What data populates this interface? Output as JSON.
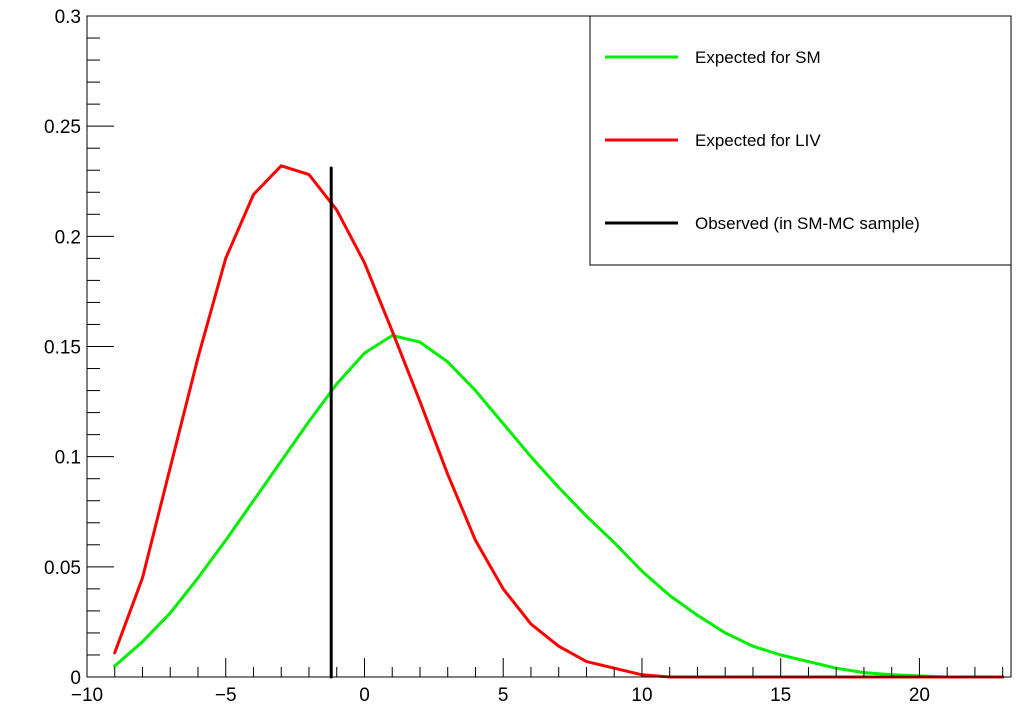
{
  "chart_data": {
    "type": "line",
    "title": "",
    "xlabel": "",
    "ylabel": "",
    "xlim": [
      -10,
      23.3
    ],
    "ylim": [
      0,
      0.3
    ],
    "x_major_ticks": [
      -10,
      -5,
      0,
      5,
      10,
      15,
      20
    ],
    "x_tick_labels": [
      "−10",
      "−5",
      "0",
      "5",
      "10",
      "15",
      "20"
    ],
    "y_major_ticks": [
      0,
      0.05,
      0.1,
      0.15,
      0.2,
      0.25,
      0.3
    ],
    "y_tick_labels": [
      "0",
      "0.05",
      "0.1",
      "0.15",
      "0.2",
      "0.25",
      "0.3"
    ],
    "grid": false,
    "legend_position": "top-right",
    "series": [
      {
        "name": "Expected for SM",
        "color": "#00ee00",
        "x": [
          -9,
          -8,
          -7,
          -6,
          -5,
          -4,
          -3,
          -2,
          -1,
          0,
          1,
          2,
          3,
          4,
          5,
          6,
          7,
          8,
          9,
          10,
          11,
          12,
          13,
          14,
          15,
          16,
          17,
          18,
          19,
          20,
          21,
          22,
          23
        ],
        "y": [
          0.005,
          0.016,
          0.029,
          0.045,
          0.062,
          0.08,
          0.098,
          0.116,
          0.133,
          0.147,
          0.155,
          0.152,
          0.143,
          0.13,
          0.115,
          0.1,
          0.086,
          0.073,
          0.061,
          0.048,
          0.037,
          0.028,
          0.02,
          0.014,
          0.01,
          0.007,
          0.004,
          0.002,
          0.001,
          0.0005,
          0,
          0,
          0
        ]
      },
      {
        "name": "Expected for LIV",
        "color": "#ff0000",
        "x": [
          -9,
          -8,
          -7,
          -6,
          -5,
          -4,
          -3,
          -2,
          -1,
          0,
          1,
          2,
          3,
          4,
          5,
          6,
          7,
          8,
          9,
          10,
          11,
          12,
          13,
          14,
          15,
          16,
          17,
          18,
          19,
          20,
          21,
          22,
          23
        ],
        "y": [
          0.011,
          0.045,
          0.095,
          0.145,
          0.19,
          0.219,
          0.232,
          0.228,
          0.212,
          0.188,
          0.157,
          0.125,
          0.092,
          0.062,
          0.04,
          0.024,
          0.014,
          0.007,
          0.004,
          0.001,
          0,
          0,
          0,
          0,
          0,
          0,
          0,
          0,
          0,
          0,
          0,
          0,
          0
        ]
      },
      {
        "name": "Observed (in SM-MC sample)",
        "color": "#000000",
        "x": [
          -1.2,
          -1.2
        ],
        "y": [
          0,
          0.231
        ]
      }
    ]
  }
}
